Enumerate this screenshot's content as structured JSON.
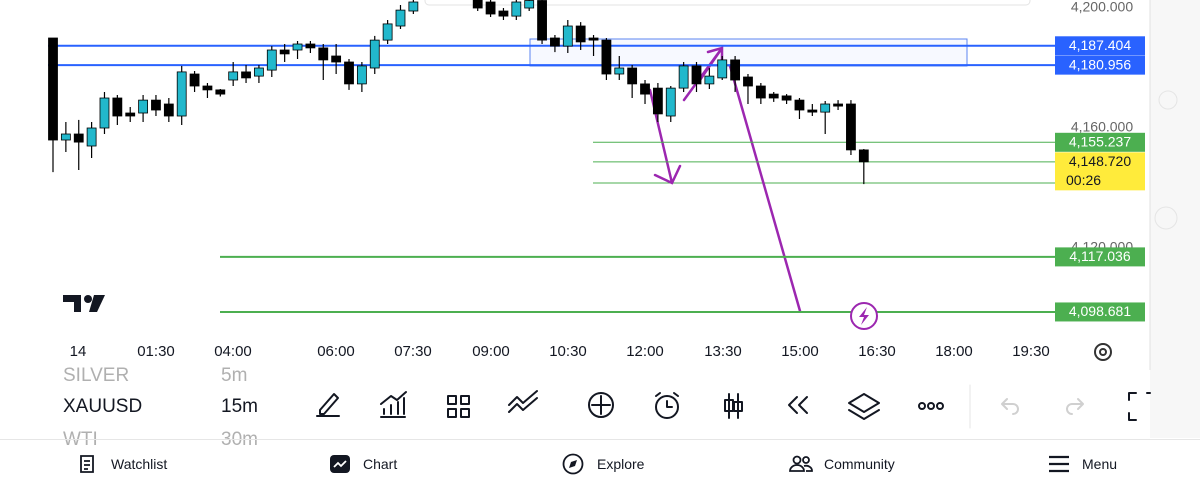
{
  "chart": {
    "type": "candlestick",
    "symbol": "XAUUSD",
    "interval": "15m",
    "ylim": [
      4091,
      4202.67
    ],
    "yticks": [
      {
        "value": 4200,
        "label": "4,200.000"
      },
      {
        "value": 4160,
        "label": "4,160.000"
      },
      {
        "value": 4120,
        "label": "4,120.000"
      }
    ],
    "x_labels": [
      "14",
      "01:30",
      "04:00",
      "06:00",
      "07:30",
      "09:00",
      "10:30",
      "12:00",
      "13:30",
      "15:00",
      "16:30",
      "18:00",
      "19:30"
    ],
    "up_color": "#22b8cc",
    "down_color": "#000000",
    "candles": [
      {
        "open": 4190,
        "high": 4190,
        "low": 4145.3,
        "close": 4156
      },
      {
        "open": 4156,
        "high": 4162,
        "low": 4152,
        "close": 4158
      },
      {
        "open": 4158,
        "high": 4162.7,
        "low": 4146,
        "close": 4155.3
      },
      {
        "open": 4154,
        "high": 4162,
        "low": 4150,
        "close": 4160
      },
      {
        "open": 4160,
        "high": 4172,
        "low": 4158,
        "close": 4170
      },
      {
        "open": 4170,
        "high": 4171,
        "low": 4161,
        "close": 4164
      },
      {
        "open": 4165,
        "high": 4167,
        "low": 4162,
        "close": 4164
      },
      {
        "open": 4165,
        "high": 4171,
        "low": 4162,
        "close": 4169.3
      },
      {
        "open": 4169.3,
        "high": 4171,
        "low": 4164,
        "close": 4166
      },
      {
        "open": 4168,
        "high": 4170,
        "low": 4162,
        "close": 4164
      },
      {
        "open": 4164,
        "high": 4180.7,
        "low": 4161,
        "close": 4178.7
      },
      {
        "open": 4178,
        "high": 4179,
        "low": 4172,
        "close": 4174
      },
      {
        "open": 4174,
        "high": 4175,
        "low": 4170,
        "close": 4172.7
      },
      {
        "open": 4172.7,
        "high": 4173,
        "low": 4170.5,
        "close": 4171.3
      },
      {
        "open": 4176,
        "high": 4182,
        "low": 4174,
        "close": 4178.7
      },
      {
        "open": 4178.7,
        "high": 4181,
        "low": 4175,
        "close": 4176.7
      },
      {
        "open": 4177.3,
        "high": 4181,
        "low": 4175,
        "close": 4180
      },
      {
        "open": 4179.3,
        "high": 4187.3,
        "low": 4177,
        "close": 4186
      },
      {
        "open": 4186,
        "high": 4188,
        "low": 4182,
        "close": 4184.7
      },
      {
        "open": 4186,
        "high": 4189,
        "low": 4183,
        "close": 4188
      },
      {
        "open": 4188,
        "high": 4189,
        "low": 4185,
        "close": 4186.7
      },
      {
        "open": 4186.7,
        "high": 4188,
        "low": 4176,
        "close": 4182.7
      },
      {
        "open": 4184,
        "high": 4188,
        "low": 4178,
        "close": 4182
      },
      {
        "open": 4182,
        "high": 4183,
        "low": 4172.7,
        "close": 4174.7
      },
      {
        "open": 4174.7,
        "high": 4182,
        "low": 4172,
        "close": 4180.7
      },
      {
        "open": 4180,
        "high": 4190.7,
        "low": 4178,
        "close": 4189.3
      },
      {
        "open": 4189.3,
        "high": 4196,
        "low": 4188,
        "close": 4194.7
      },
      {
        "open": 4194,
        "high": 4201,
        "low": 4193,
        "close": 4199.3
      },
      {
        "open": 4199,
        "high": 4203,
        "low": 4198,
        "close": 4202
      },
      null,
      null,
      null,
      null,
      {
        "open": 4203,
        "high": 4204,
        "low": 4199,
        "close": 4200
      },
      {
        "open": 4202,
        "high": 4203,
        "low": 4197,
        "close": 4198
      },
      {
        "open": 4199,
        "high": 4200,
        "low": 4196,
        "close": 4197.3
      },
      {
        "open": 4197.3,
        "high": 4203,
        "low": 4196,
        "close": 4202
      },
      {
        "open": 4200,
        "high": 4203,
        "low": 4199,
        "close": 4202.5
      },
      {
        "open": 4202.5,
        "high": 4203,
        "low": 4188,
        "close": 4189.3
      },
      {
        "open": 4190,
        "high": 4191,
        "low": 4185.3,
        "close": 4187.3
      },
      {
        "open": 4187.3,
        "high": 4196,
        "low": 4185,
        "close": 4194
      },
      {
        "open": 4194,
        "high": 4195.3,
        "low": 4186,
        "close": 4188.7
      },
      {
        "open": 4190,
        "high": 4191,
        "low": 4184,
        "close": 4189.3
      },
      {
        "open": 4189.3,
        "high": 4190,
        "low": 4176,
        "close": 4178
      },
      {
        "open": 4178,
        "high": 4184,
        "low": 4176,
        "close": 4180
      },
      {
        "open": 4180,
        "high": 4181,
        "low": 4170,
        "close": 4174.7
      },
      {
        "open": 4174.7,
        "high": 4176,
        "low": 4168,
        "close": 4171.3
      },
      {
        "open": 4173.3,
        "high": 4175,
        "low": 4162,
        "close": 4164.7
      },
      {
        "open": 4164,
        "high": 4174,
        "low": 4162,
        "close": 4173.3
      },
      {
        "open": 4173.3,
        "high": 4182,
        "low": 4172,
        "close": 4180.7
      },
      {
        "open": 4180.7,
        "high": 4182,
        "low": 4172,
        "close": 4174.7
      },
      {
        "open": 4174.7,
        "high": 4180,
        "low": 4173,
        "close": 4177.3
      },
      {
        "open": 4176.7,
        "high": 4184,
        "low": 4176,
        "close": 4182.7
      },
      {
        "open": 4182.7,
        "high": 4184,
        "low": 4172,
        "close": 4176
      },
      {
        "open": 4177,
        "high": 4178,
        "low": 4168,
        "close": 4174
      },
      {
        "open": 4174,
        "high": 4175,
        "low": 4168,
        "close": 4170
      },
      {
        "open": 4171.3,
        "high": 4172,
        "low": 4168.7,
        "close": 4170
      },
      {
        "open": 4170.7,
        "high": 4171.3,
        "low": 4168,
        "close": 4169.3
      },
      {
        "open": 4169.3,
        "high": 4170,
        "low": 4163,
        "close": 4166
      },
      {
        "open": 4166,
        "high": 4168,
        "low": 4164,
        "close": 4165.3
      },
      {
        "open": 4165.3,
        "high": 4169,
        "low": 4158,
        "close": 4168
      },
      {
        "open": 4168,
        "high": 4169.3,
        "low": 4166,
        "close": 4167.3
      },
      {
        "open": 4168,
        "high": 4169.3,
        "low": 4151,
        "close": 4152.7
      },
      {
        "open": 4152.7,
        "high": 4153,
        "low": 4141.3,
        "close": 4148.72
      }
    ],
    "levels": [
      {
        "value": 4187.404,
        "label": "4,187.404",
        "color": "#2962ff"
      },
      {
        "value": 4180.956,
        "label": "4,180.956",
        "color": "#2962ff"
      },
      {
        "value": 4155.237,
        "label": "4,155.237",
        "color": "#4caf50"
      },
      {
        "value": 4148.72,
        "label": "4,148.720",
        "color": "#ffeb3b"
      },
      {
        "value": 4117.036,
        "label": "4,117.036",
        "color": "#4caf50"
      },
      {
        "value": 4098.681,
        "label": "4,098.681",
        "color": "#4caf50"
      }
    ],
    "countdown": "00:26"
  },
  "watchlist": [
    {
      "symbol": "SILVER",
      "interval": "5m"
    },
    {
      "symbol": "XAUUSD",
      "interval": "15m"
    },
    {
      "symbol": "WTI",
      "interval": "30m"
    }
  ],
  "nav": [
    "Watchlist",
    "Chart",
    "Explore",
    "Community",
    "Menu"
  ]
}
